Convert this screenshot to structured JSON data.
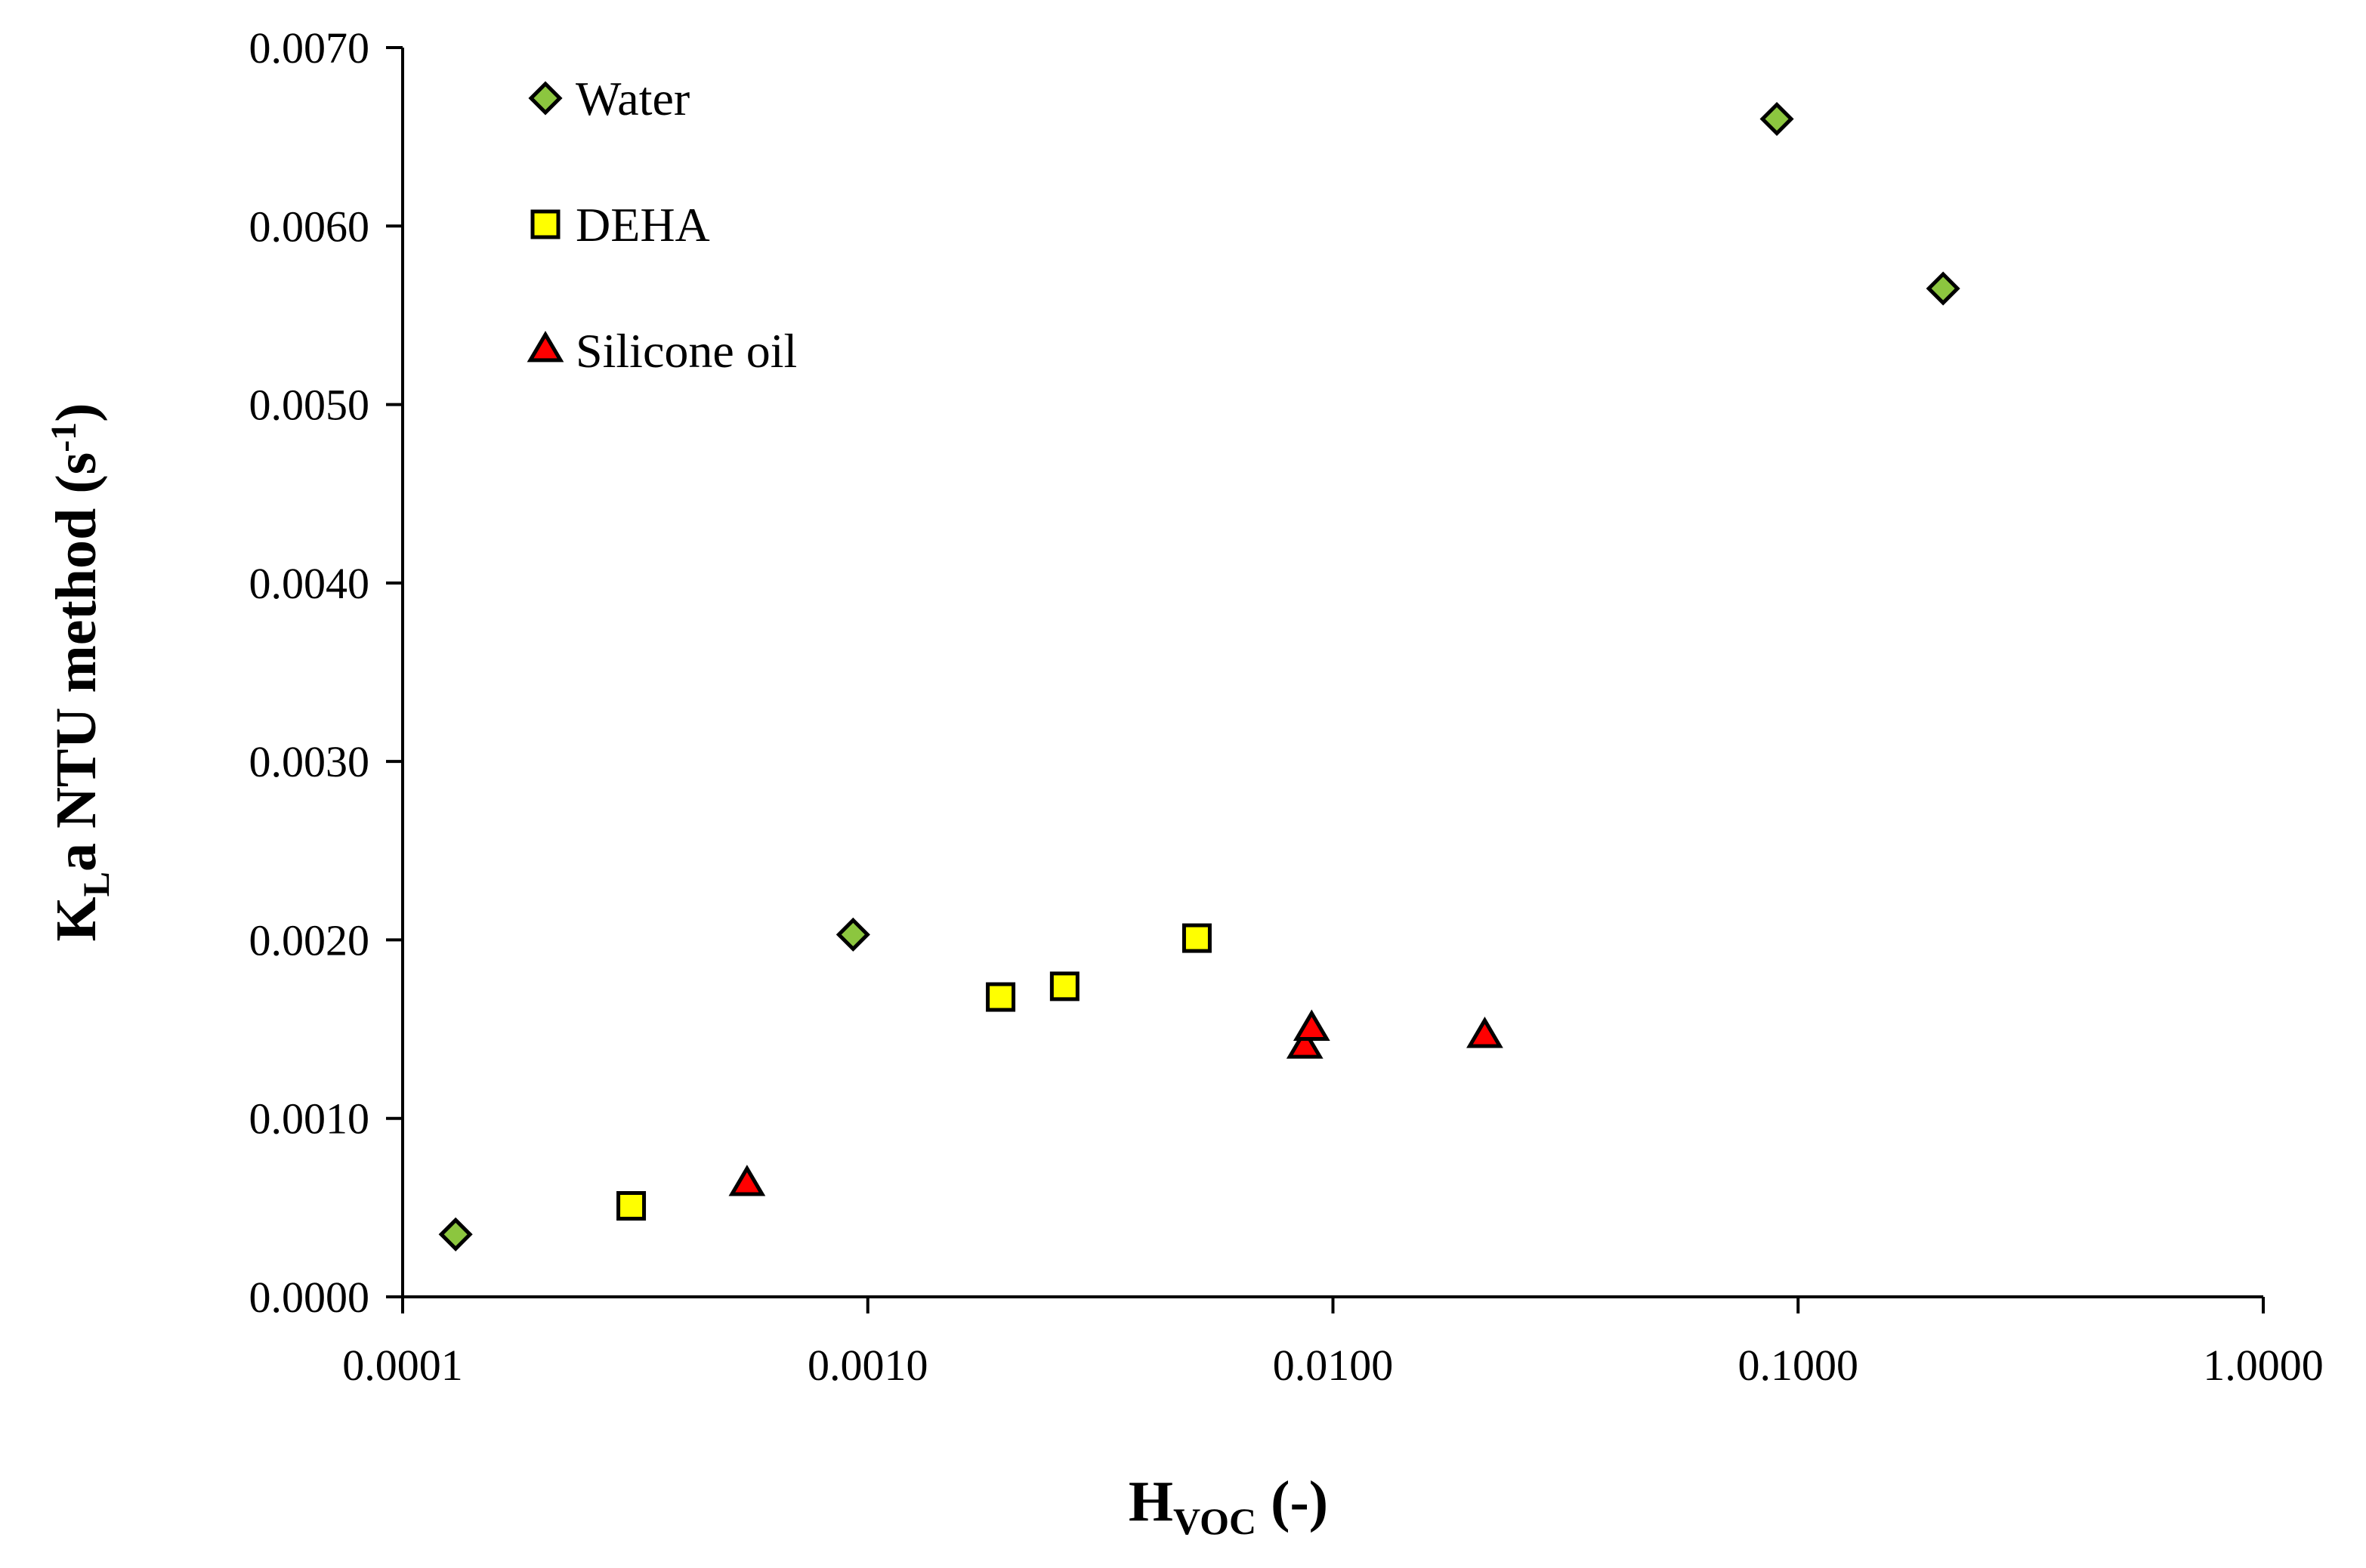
{
  "chart_data": {
    "type": "scatter",
    "title": "",
    "xscale": "log",
    "xlim": [
      0.0001,
      1.0
    ],
    "ylim": [
      0.0,
      0.007
    ],
    "grid": false,
    "legend_position": "top-left",
    "xlabel": {
      "main": "H",
      "sub": "VOC",
      "tail": " (-)"
    },
    "ylabel": {
      "main": "K",
      "sub": "L",
      "mid": "a NTU method (s",
      "sup": "-1",
      "tail": ")"
    },
    "xticks": [
      {
        "value": 0.0001,
        "label": "0.0001"
      },
      {
        "value": 0.001,
        "label": "0.0010"
      },
      {
        "value": 0.01,
        "label": "0.0100"
      },
      {
        "value": 0.1,
        "label": "0.1000"
      },
      {
        "value": 1.0,
        "label": "1.0000"
      }
    ],
    "yticks": [
      {
        "value": 0.0,
        "label": "0.0000"
      },
      {
        "value": 0.001,
        "label": "0.0010"
      },
      {
        "value": 0.002,
        "label": "0.0020"
      },
      {
        "value": 0.003,
        "label": "0.0030"
      },
      {
        "value": 0.004,
        "label": "0.0040"
      },
      {
        "value": 0.005,
        "label": "0.0050"
      },
      {
        "value": 0.006,
        "label": "0.0060"
      },
      {
        "value": 0.007,
        "label": "0.0070"
      }
    ],
    "series": [
      {
        "name": "Water",
        "marker": "diamond",
        "color": "#8cc63f",
        "points": [
          {
            "x": 0.00013,
            "y": 0.00035
          },
          {
            "x": 0.00093,
            "y": 0.00203
          },
          {
            "x": 0.09,
            "y": 0.0066
          },
          {
            "x": 0.205,
            "y": 0.00565
          }
        ]
      },
      {
        "name": "DEHA",
        "marker": "square",
        "color": "#ffff00",
        "points": [
          {
            "x": 0.00031,
            "y": 0.00051
          },
          {
            "x": 0.00193,
            "y": 0.00168
          },
          {
            "x": 0.00265,
            "y": 0.00174
          },
          {
            "x": 0.0051,
            "y": 0.00201
          }
        ]
      },
      {
        "name": "Silicone oil",
        "marker": "triangle",
        "color": "#ff0000",
        "points": [
          {
            "x": 0.00055,
            "y": 0.00063
          },
          {
            "x": 0.0087,
            "y": 0.0014
          },
          {
            "x": 0.009,
            "y": 0.0015
          },
          {
            "x": 0.0212,
            "y": 0.00146
          }
        ]
      }
    ]
  }
}
